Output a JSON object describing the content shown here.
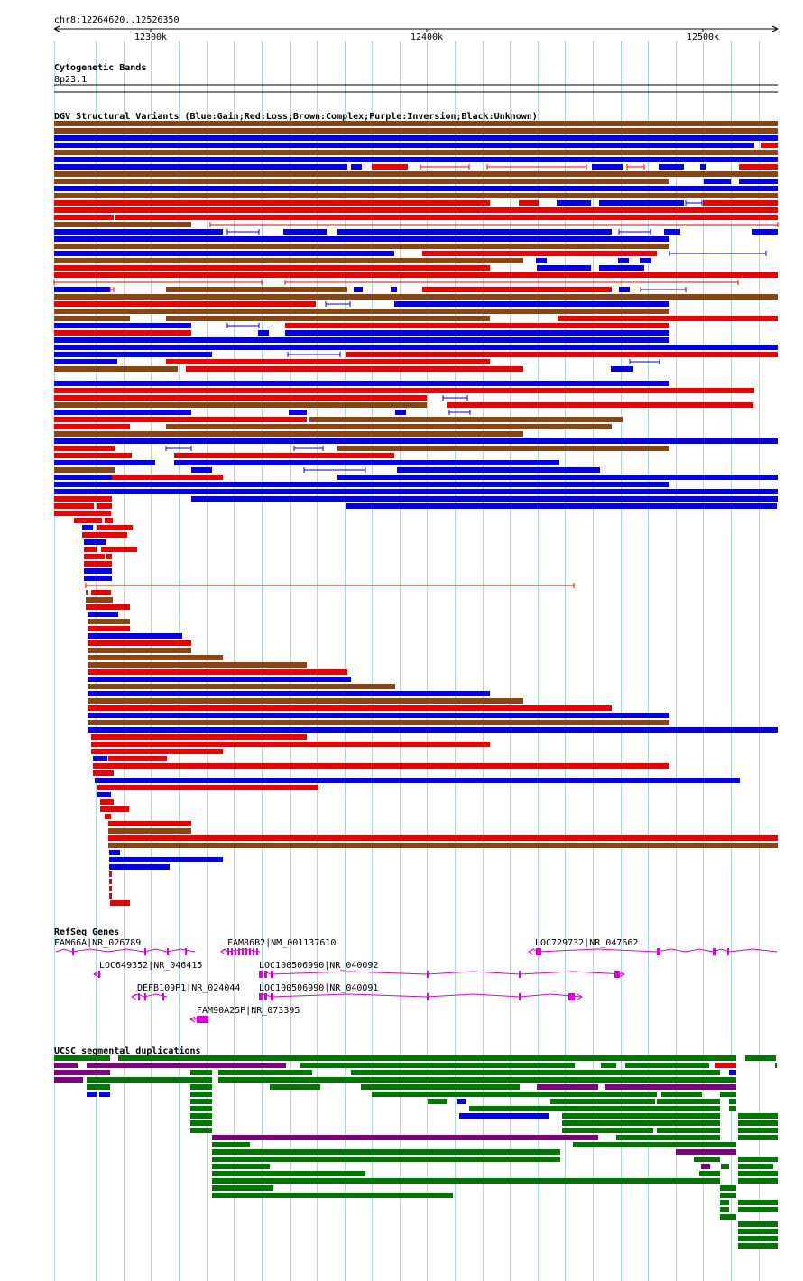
{
  "locus": "chr8:12264620..12526350",
  "ruler": {
    "ticks": [
      {
        "label": "12300k",
        "pos": 12300000
      },
      {
        "label": "12400k",
        "pos": 12400000
      },
      {
        "label": "12500k",
        "pos": 12500000
      }
    ]
  },
  "colors": {
    "gain": "#0000ee",
    "loss": "#ee0000",
    "complex": "#8b4513",
    "inversion": "#800080",
    "segdup_green": "#007700",
    "segdup_purple": "#800080",
    "segdup_blue": "#0000ee",
    "segdup_red": "#ee0000",
    "gene": "#dd00dd",
    "grid": "#add8e6"
  },
  "tracks": {
    "cytoband": {
      "title": "Cytogenetic Bands",
      "band": "8p23.1"
    },
    "dgv": {
      "title": "DGV Structural Variants (Blue:Gain;Red:Loss;Brown:Complex;Purple:Inversion;Black:Unknown)"
    },
    "refseq": {
      "title": "RefSeq Genes",
      "genes": [
        {
          "label": "FAM66A|NR_026789"
        },
        {
          "label": "FAM86B2|NM_001137610"
        },
        {
          "label": "LOC729732|NR_047662"
        },
        {
          "label": "LOC649352|NR_046415"
        },
        {
          "label": "LOC100506990|NR_040092"
        },
        {
          "label": "DEFB109P1|NR_024044"
        },
        {
          "label": "LOC100506990|NR_040091"
        },
        {
          "label": "FAM90A25P|NR_073395"
        }
      ]
    },
    "segdup": {
      "title": "UCSC segmental duplications"
    }
  }
}
